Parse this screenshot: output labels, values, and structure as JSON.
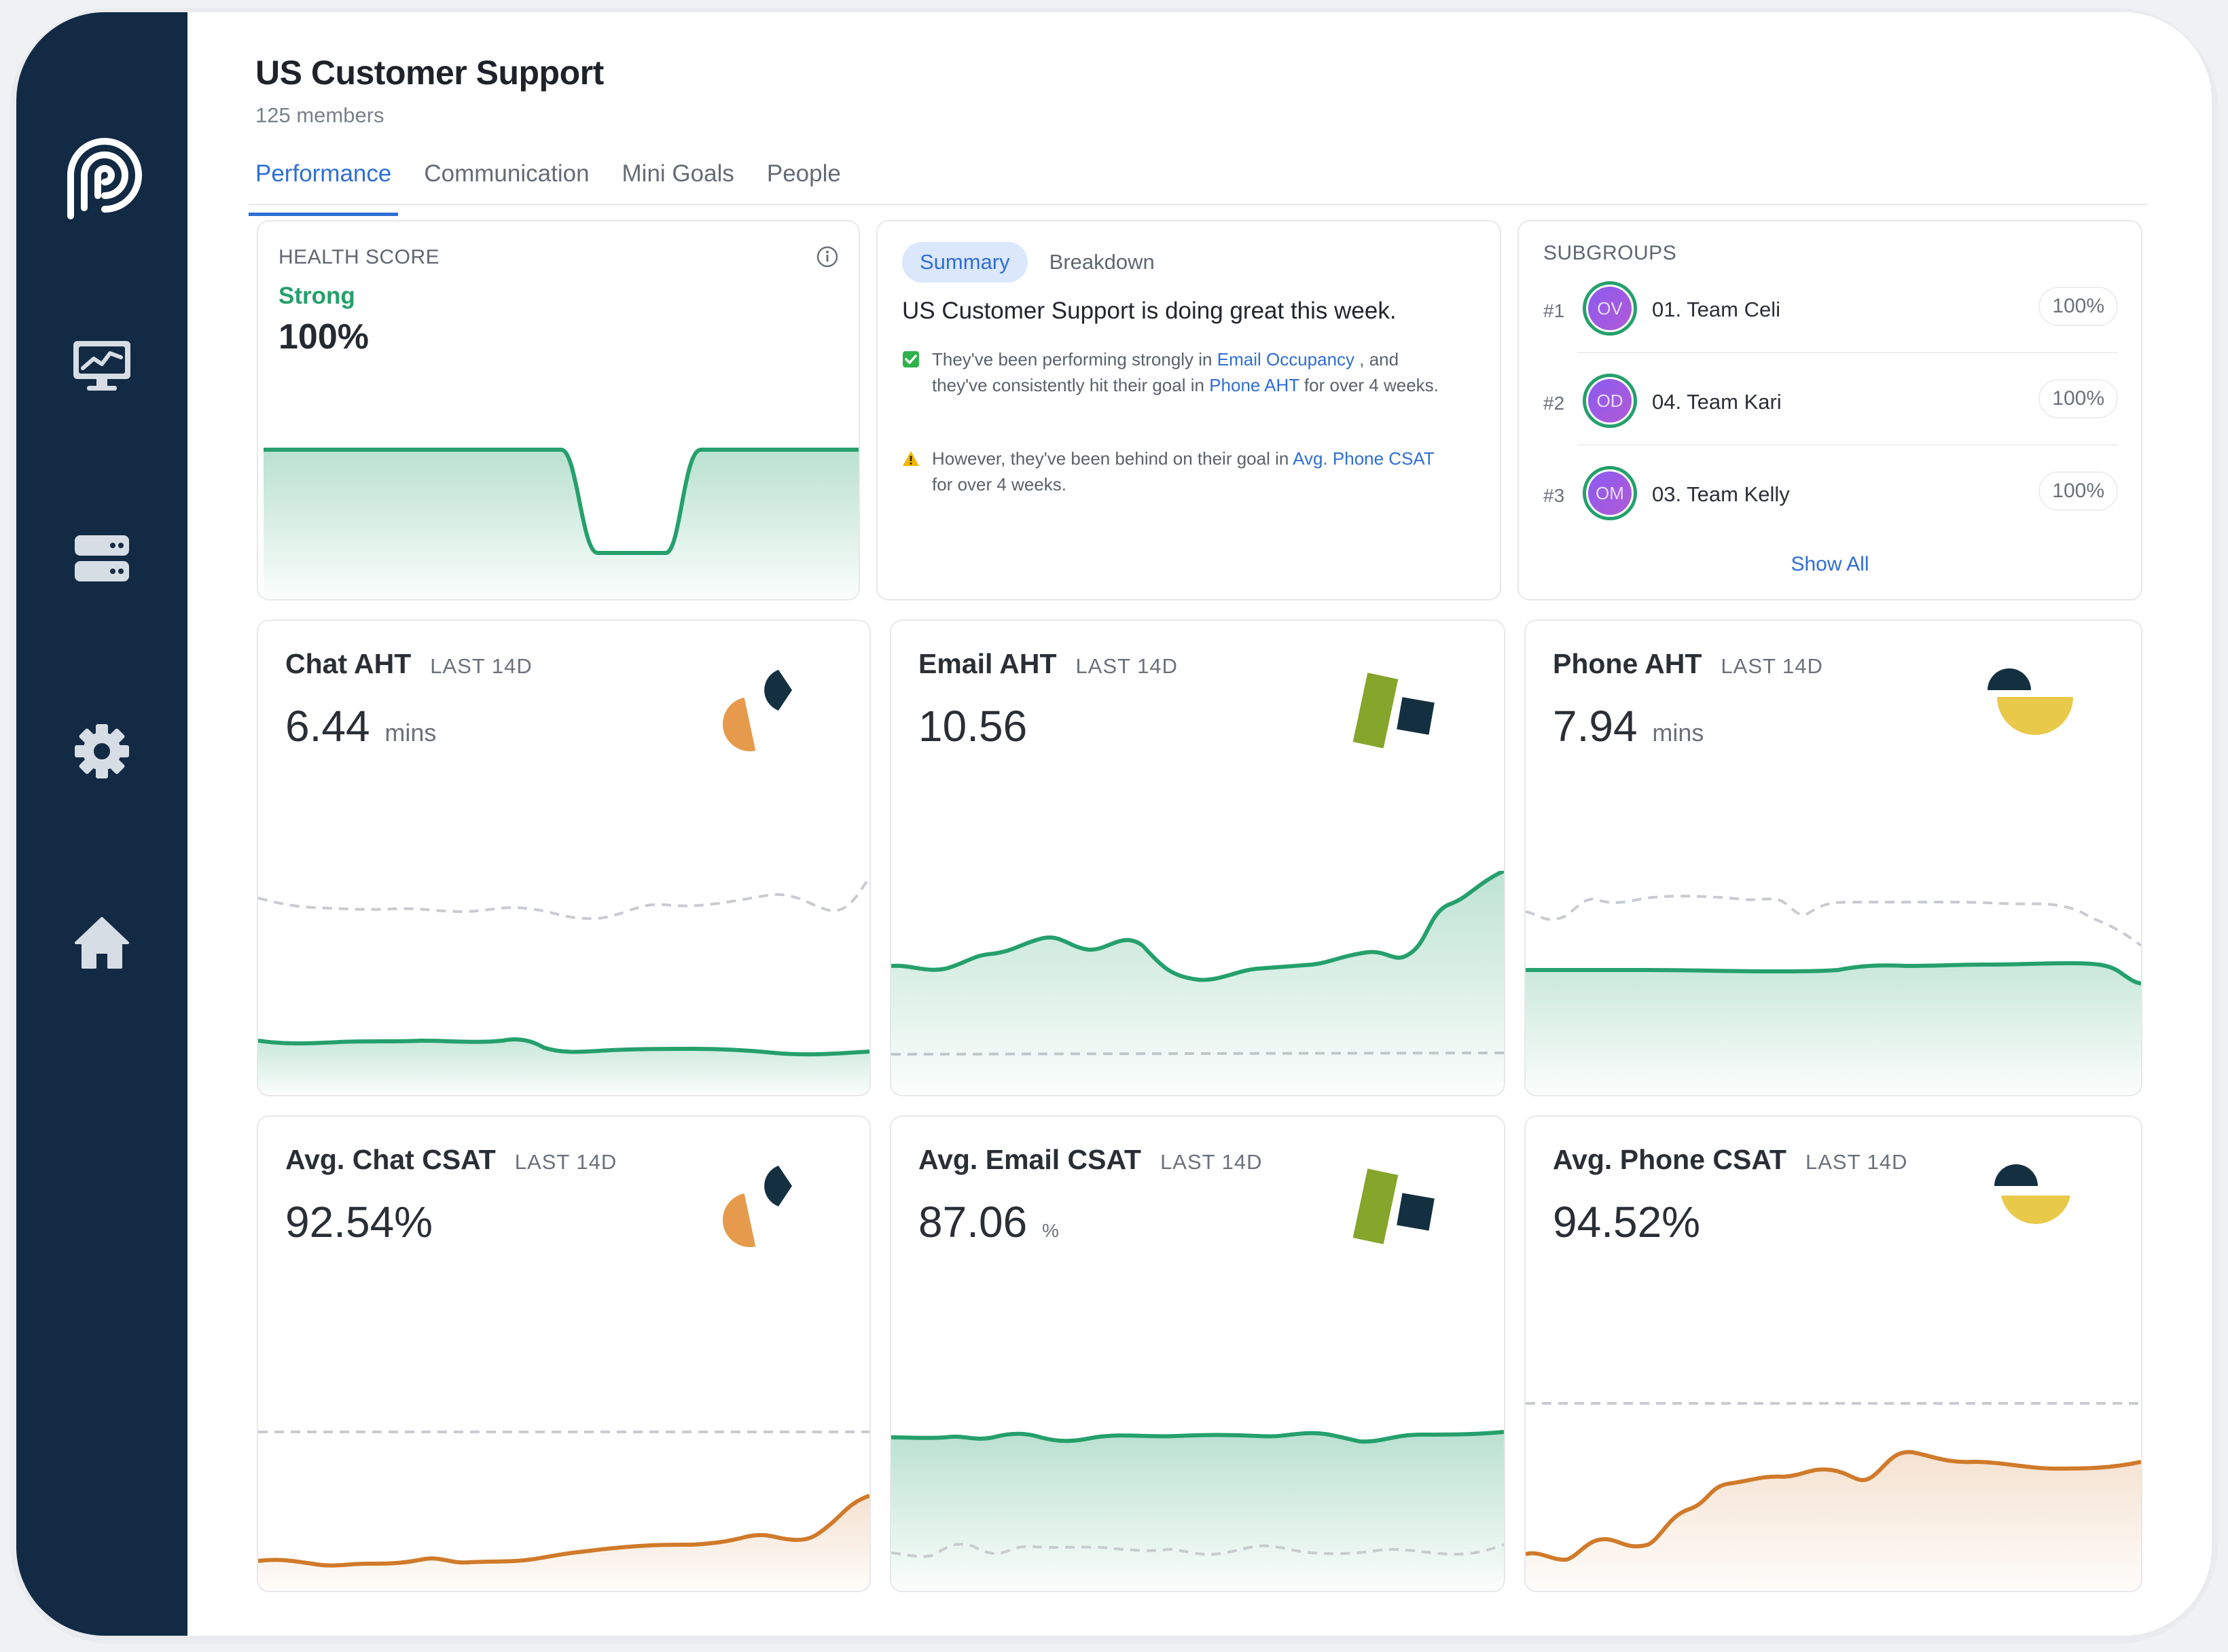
{
  "header": {
    "title": "US Customer Support",
    "members": "125 members"
  },
  "tabs": [
    {
      "label": "Performance",
      "active": true
    },
    {
      "label": "Communication"
    },
    {
      "label": "Mini Goals"
    },
    {
      "label": "People"
    }
  ],
  "sidebar": {
    "icons": [
      "logo-icon",
      "monitor-chart-icon",
      "servers-icon",
      "gear-icon",
      "home-icon"
    ],
    "bg": "#122a44"
  },
  "health": {
    "label": "HEALTH SCORE",
    "status": "Strong",
    "value": "100%"
  },
  "summary": {
    "tabs": [
      "Summary",
      "Breakdown"
    ],
    "headline": "US Customer Support is doing great this week.",
    "item1": {
      "t1": "They've been performing strongly in ",
      "l1": "Email Occupancy",
      "t2": " , and they've consistently hit their goal in ",
      "l2": "Phone AHT",
      "t3": " for over 4 weeks."
    },
    "item2": {
      "t1": "However, they've been behind on their goal in ",
      "l1": "Avg. Phone CSAT",
      "t2": " for over 4 weeks."
    }
  },
  "subgroups": {
    "label": "SUBGROUPS",
    "items": [
      {
        "rank": "#1",
        "initials": "OV",
        "name": "01. Team Celi",
        "pct": "100%"
      },
      {
        "rank": "#2",
        "initials": "OD",
        "name": "04. Team Kari",
        "pct": "100%"
      },
      {
        "rank": "#3",
        "initials": "OM",
        "name": "03. Team Kelly",
        "pct": "100%"
      }
    ],
    "show_all": "Show All"
  },
  "metrics": [
    {
      "title": "Chat AHT",
      "period": "LAST 14D",
      "value": "6.44",
      "unit": "mins",
      "icon": "chat-shapes-icon"
    },
    {
      "title": "Email AHT",
      "period": "LAST 14D",
      "value": "10.56",
      "unit": "",
      "icon": "email-shapes-icon"
    },
    {
      "title": "Phone AHT",
      "period": "LAST 14D",
      "value": "7.94",
      "unit": "mins",
      "icon": "phone-shapes-icon"
    },
    {
      "title": "Avg. Chat CSAT",
      "period": "LAST 14D",
      "value": "92.54%",
      "unit": "",
      "icon": "chat-shapes-icon"
    },
    {
      "title": "Avg. Email CSAT",
      "period": "LAST 14D",
      "value": "87.06",
      "unit": "%",
      "icon": "email-shapes-icon"
    },
    {
      "title": "Avg. Phone CSAT",
      "period": "LAST 14D",
      "value": "94.52%",
      "unit": "",
      "icon": "phone-shapes-icon"
    }
  ],
  "colors": {
    "accent": "#2e6ed6",
    "good": "#25a06c",
    "warn": "#d07a2a",
    "yellow": "#e8c94a",
    "olive": "#86a52b",
    "navy": "#143040",
    "orange": "#e69a4c"
  }
}
